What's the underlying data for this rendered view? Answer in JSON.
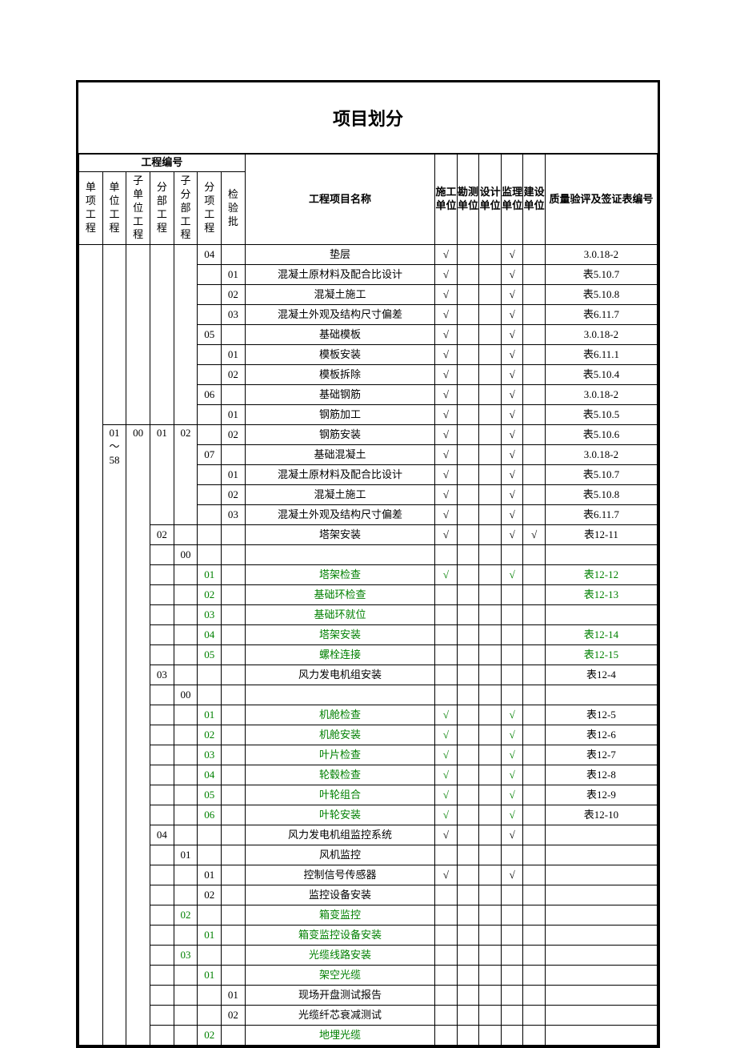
{
  "title": "项目划分",
  "headers": {
    "eng_number": "工程编号",
    "col1": "单项工程",
    "col2": "单位工程",
    "col3": "子单位工程",
    "col4": "分部工程",
    "col5": "子分部工程",
    "col6": "分项工程",
    "col7": "检验批",
    "name": "工程项目名称",
    "ck1": "施工单位",
    "ck2": "勘测单位",
    "ck3": "设计单位",
    "ck4": "监理单位",
    "ck5": "建设单位",
    "note": "质量验评及签证表编号"
  },
  "span_col2": "01～58",
  "span_col3": "00",
  "span_col4_1": "01",
  "span_col5_1": "02",
  "colors": {
    "green": "#008000",
    "black": "#000000"
  },
  "rows": [
    {
      "c5": "",
      "c6": "04",
      "c7": "",
      "name": "垫层",
      "ck1": "√",
      "ck2": "",
      "ck3": "",
      "ck4": "√",
      "ck5": "",
      "note": "3.0.18-2",
      "green": false
    },
    {
      "c5": "",
      "c6": "",
      "c7": "01",
      "name": "混凝土原材料及配合比设计",
      "ck1": "√",
      "ck2": "",
      "ck3": "",
      "ck4": "√",
      "ck5": "",
      "note": "表5.10.7",
      "green": false
    },
    {
      "c5": "",
      "c6": "",
      "c7": "02",
      "name": "混凝土施工",
      "ck1": "√",
      "ck2": "",
      "ck3": "",
      "ck4": "√",
      "ck5": "",
      "note": "表5.10.8",
      "green": false
    },
    {
      "c5": "",
      "c6": "",
      "c7": "03",
      "name": "混凝土外观及结构尺寸偏差",
      "ck1": "√",
      "ck2": "",
      "ck3": "",
      "ck4": "√",
      "ck5": "",
      "note": "表6.11.7",
      "green": false
    },
    {
      "c5": "",
      "c6": "05",
      "c7": "",
      "name": "基础模板",
      "ck1": "√",
      "ck2": "",
      "ck3": "",
      "ck4": "√",
      "ck5": "",
      "note": "3.0.18-2",
      "green": false
    },
    {
      "c5": "",
      "c6": "",
      "c7": "01",
      "name": "模板安装",
      "ck1": "√",
      "ck2": "",
      "ck3": "",
      "ck4": "√",
      "ck5": "",
      "note": "表6.11.1",
      "green": false
    },
    {
      "c5": "",
      "c6": "",
      "c7": "02",
      "name": "模板拆除",
      "ck1": "√",
      "ck2": "",
      "ck3": "",
      "ck4": "√",
      "ck5": "",
      "note": "表5.10.4",
      "green": false
    },
    {
      "c5": "",
      "c6": "06",
      "c7": "",
      "name": "基础钢筋",
      "ck1": "√",
      "ck2": "",
      "ck3": "",
      "ck4": "√",
      "ck5": "",
      "note": "3.0.18-2",
      "green": false
    },
    {
      "c5": "",
      "c6": "",
      "c7": "01",
      "name": "钢筋加工",
      "ck1": "√",
      "ck2": "",
      "ck3": "",
      "ck4": "√",
      "ck5": "",
      "note": "表5.10.5",
      "green": false
    },
    {
      "c5": "",
      "c6": "",
      "c7": "02",
      "name": "钢筋安装",
      "ck1": "√",
      "ck2": "",
      "ck3": "",
      "ck4": "√",
      "ck5": "",
      "note": "表5.10.6",
      "green": false
    },
    {
      "c5": "",
      "c6": "07",
      "c7": "",
      "name": "基础混凝土",
      "ck1": "√",
      "ck2": "",
      "ck3": "",
      "ck4": "√",
      "ck5": "",
      "note": "3.0.18-2",
      "green": false
    },
    {
      "c5": "",
      "c6": "",
      "c7": "01",
      "name": "混凝土原材料及配合比设计",
      "ck1": "√",
      "ck2": "",
      "ck3": "",
      "ck4": "√",
      "ck5": "",
      "note": "表5.10.7",
      "green": false
    },
    {
      "c5": "",
      "c6": "",
      "c7": "02",
      "name": "混凝土施工",
      "ck1": "√",
      "ck2": "",
      "ck3": "",
      "ck4": "√",
      "ck5": "",
      "note": "表5.10.8",
      "green": false
    },
    {
      "c5": "",
      "c6": "",
      "c7": "03",
      "name": "混凝土外观及结构尺寸偏差",
      "ck1": "√",
      "ck2": "",
      "ck3": "",
      "ck4": "√",
      "ck5": "",
      "note": "表6.11.7",
      "green": false
    },
    {
      "c4": "02",
      "c5": "",
      "c6": "",
      "c7": "",
      "name": "塔架安装",
      "ck1": "√",
      "ck2": "",
      "ck3": "",
      "ck4": "√",
      "ck5": "√",
      "note": "表12-11",
      "green": false
    },
    {
      "c4": "",
      "c5": "00",
      "c6": "",
      "c7": "",
      "name": "",
      "ck1": "",
      "ck2": "",
      "ck3": "",
      "ck4": "",
      "ck5": "",
      "note": "",
      "green": false
    },
    {
      "c4": "",
      "c5": "",
      "c6": "01",
      "c7": "",
      "name": "塔架检查",
      "ck1": "√",
      "ck2": "",
      "ck3": "",
      "ck4": "√",
      "ck5": "",
      "note": "表12-12",
      "green": true,
      "greenNote": true,
      "greenCk": true
    },
    {
      "c4": "",
      "c5": "",
      "c6": "02",
      "c7": "",
      "name": "基础环检查",
      "ck1": "",
      "ck2": "",
      "ck3": "",
      "ck4": "",
      "ck5": "",
      "note": "表12-13",
      "green": true,
      "greenNote": true
    },
    {
      "c4": "",
      "c5": "",
      "c6": "03",
      "c7": "",
      "name": "基础环就位",
      "ck1": "",
      "ck2": "",
      "ck3": "",
      "ck4": "",
      "ck5": "",
      "note": "",
      "green": true
    },
    {
      "c4": "",
      "c5": "",
      "c6": "04",
      "c7": "",
      "name": "塔架安装",
      "ck1": "",
      "ck2": "",
      "ck3": "",
      "ck4": "",
      "ck5": "",
      "note": "表12-14",
      "green": true,
      "greenNote": true
    },
    {
      "c4": "",
      "c5": "",
      "c6": "05",
      "c7": "",
      "name": "螺栓连接",
      "ck1": "",
      "ck2": "",
      "ck3": "",
      "ck4": "",
      "ck5": "",
      "note": "表12-15",
      "green": true,
      "greenNote": true
    },
    {
      "c4": "03",
      "c5": "",
      "c6": "",
      "c7": "",
      "name": "风力发电机组安装",
      "ck1": "",
      "ck2": "",
      "ck3": "",
      "ck4": "",
      "ck5": "",
      "note": "表12-4",
      "green": false
    },
    {
      "c4": "",
      "c5": "00",
      "c6": "",
      "c7": "",
      "name": "",
      "ck1": "",
      "ck2": "",
      "ck3": "",
      "ck4": "",
      "ck5": "",
      "note": "",
      "green": false
    },
    {
      "c4": "",
      "c5": "",
      "c6": "01",
      "c7": "",
      "name": "机舱检查",
      "ck1": "√",
      "ck2": "",
      "ck3": "",
      "ck4": "√",
      "ck5": "",
      "note": "表12-5",
      "green": true,
      "greenCk": true
    },
    {
      "c4": "",
      "c5": "",
      "c6": "02",
      "c7": "",
      "name": "机舱安装",
      "ck1": "√",
      "ck2": "",
      "ck3": "",
      "ck4": "√",
      "ck5": "",
      "note": "表12-6",
      "green": true,
      "greenCk": true
    },
    {
      "c4": "",
      "c5": "",
      "c6": "03",
      "c7": "",
      "name": "叶片检查",
      "ck1": "√",
      "ck2": "",
      "ck3": "",
      "ck4": "√",
      "ck5": "",
      "note": "表12-7",
      "green": true,
      "greenCk": true
    },
    {
      "c4": "",
      "c5": "",
      "c6": "04",
      "c7": "",
      "name": "轮毂检查",
      "ck1": "√",
      "ck2": "",
      "ck3": "",
      "ck4": "√",
      "ck5": "",
      "note": "表12-8",
      "green": true,
      "greenCk": true
    },
    {
      "c4": "",
      "c5": "",
      "c6": "05",
      "c7": "",
      "name": "叶轮组合",
      "ck1": "√",
      "ck2": "",
      "ck3": "",
      "ck4": "√",
      "ck5": "",
      "note": "表12-9",
      "green": true,
      "greenCk": true
    },
    {
      "c4": "",
      "c5": "",
      "c6": "06",
      "c7": "",
      "name": "叶轮安装",
      "ck1": "√",
      "ck2": "",
      "ck3": "",
      "ck4": "√",
      "ck5": "",
      "note": "表12-10",
      "green": true,
      "greenCk": true
    },
    {
      "c4": "04",
      "c5": "",
      "c6": "",
      "c7": "",
      "name": "风力发电机组监控系统",
      "ck1": "√",
      "ck2": "",
      "ck3": "",
      "ck4": "√",
      "ck5": "",
      "note": "",
      "green": false
    },
    {
      "c4": "",
      "c5": "01",
      "c6": "",
      "c7": "",
      "name": "风机监控",
      "ck1": "",
      "ck2": "",
      "ck3": "",
      "ck4": "",
      "ck5": "",
      "note": "",
      "green": false
    },
    {
      "c4": "",
      "c5": "",
      "c6": "01",
      "c7": "",
      "name": "控制信号传感器",
      "ck1": "√",
      "ck2": "",
      "ck3": "",
      "ck4": "√",
      "ck5": "",
      "note": "",
      "green": false
    },
    {
      "c4": "",
      "c5": "",
      "c6": "02",
      "c7": "",
      "name": "监控设备安装",
      "ck1": "",
      "ck2": "",
      "ck3": "",
      "ck4": "",
      "ck5": "",
      "note": "",
      "green": false
    },
    {
      "c4": "",
      "c5": "02",
      "c6": "",
      "c7": "",
      "name": "箱变监控",
      "ck1": "",
      "ck2": "",
      "ck3": "",
      "ck4": "",
      "ck5": "",
      "note": "",
      "green": true,
      "greenC5": true
    },
    {
      "c4": "",
      "c5": "",
      "c6": "01",
      "c7": "",
      "name": "箱变监控设备安装",
      "ck1": "",
      "ck2": "",
      "ck3": "",
      "ck4": "",
      "ck5": "",
      "note": "",
      "green": true
    },
    {
      "c4": "",
      "c5": "03",
      "c6": "",
      "c7": "",
      "name": "光缆线路安装",
      "ck1": "",
      "ck2": "",
      "ck3": "",
      "ck4": "",
      "ck5": "",
      "note": "",
      "green": true,
      "greenC5": true
    },
    {
      "c4": "",
      "c5": "",
      "c6": "01",
      "c7": "",
      "name": "架空光缆",
      "ck1": "",
      "ck2": "",
      "ck3": "",
      "ck4": "",
      "ck5": "",
      "note": "",
      "green": true
    },
    {
      "c4": "",
      "c5": "",
      "c6": "",
      "c7": "01",
      "name": "现场开盘测试报告",
      "ck1": "",
      "ck2": "",
      "ck3": "",
      "ck4": "",
      "ck5": "",
      "note": "",
      "green": false
    },
    {
      "c4": "",
      "c5": "",
      "c6": "",
      "c7": "02",
      "name": "光缆纤芯衰减测试",
      "ck1": "",
      "ck2": "",
      "ck3": "",
      "ck4": "",
      "ck5": "",
      "note": "",
      "green": false
    },
    {
      "c4": "",
      "c5": "",
      "c6": "02",
      "c7": "",
      "name": "地埋光缆",
      "ck1": "",
      "ck2": "",
      "ck3": "",
      "ck4": "",
      "ck5": "",
      "note": "",
      "green": true
    }
  ]
}
